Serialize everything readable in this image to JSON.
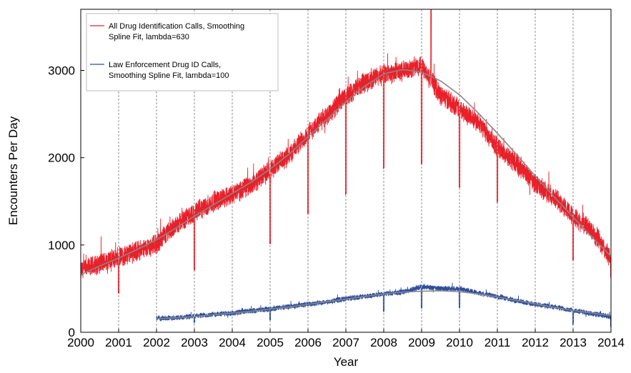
{
  "chart_data": {
    "type": "line",
    "title": "",
    "xlabel": "Year",
    "ylabel": "Encounters Per Day",
    "xlim": [
      2000,
      2014
    ],
    "ylim": [
      0,
      3700
    ],
    "x_ticks": [
      "2000",
      "2001",
      "2002",
      "2003",
      "2004",
      "2005",
      "2006",
      "2007",
      "2008",
      "2009",
      "2010",
      "2011",
      "2012",
      "2013",
      "2014"
    ],
    "y_ticks": [
      "0",
      "1000",
      "2000",
      "3000"
    ],
    "x_tick_values": [
      2000,
      2001,
      2002,
      2003,
      2004,
      2005,
      2006,
      2007,
      2008,
      2009,
      2010,
      2011,
      2012,
      2013,
      2014
    ],
    "y_tick_values": [
      0,
      1000,
      2000,
      3000
    ],
    "vertical_gridlines": "dashed at each year",
    "legend_position": "top-left",
    "series": [
      {
        "name": "All Drug Identification Calls, Smoothing Spline Fit, lambda=630",
        "legend_lines": [
          "All Drug Identification Calls, Smoothing",
          "Spline Fit, lambda=630"
        ],
        "color": "#e8202a",
        "noise_amplitude": 130,
        "x": [
          2000.0,
          2000.5,
          2001.0,
          2001.5,
          2002.0,
          2002.5,
          2003.0,
          2003.5,
          2004.0,
          2004.5,
          2005.0,
          2005.5,
          2006.0,
          2006.5,
          2007.0,
          2007.5,
          2008.0,
          2008.5,
          2009.0,
          2009.5,
          2010.0,
          2010.5,
          2011.0,
          2011.5,
          2012.0,
          2012.5,
          2013.0,
          2013.5,
          2014.0
        ],
        "y": [
          700,
          790,
          860,
          930,
          1010,
          1230,
          1370,
          1490,
          1580,
          1690,
          1860,
          2030,
          2280,
          2490,
          2700,
          2860,
          2960,
          2990,
          3070,
          2720,
          2560,
          2400,
          2120,
          1930,
          1700,
          1550,
          1330,
          1170,
          830
        ],
        "dips": [
          {
            "x": 2001.0,
            "y": 440
          },
          {
            "x": 2003.0,
            "y": 700
          },
          {
            "x": 2005.0,
            "y": 1010
          },
          {
            "x": 2006.0,
            "y": 1350
          },
          {
            "x": 2007.0,
            "y": 1570
          },
          {
            "x": 2008.0,
            "y": 1870
          },
          {
            "x": 2009.0,
            "y": 1920
          },
          {
            "x": 2010.0,
            "y": 1650
          },
          {
            "x": 2011.0,
            "y": 1480
          },
          {
            "x": 2013.0,
            "y": 820
          },
          {
            "x": 2014.0,
            "y": 620
          }
        ],
        "peak": {
          "x": 2009.25,
          "y": 3700
        }
      },
      {
        "name": "Law Enforcement Drug ID Calls, Smoothing Spline Fit, lambda=100",
        "legend_lines": [
          "Law Enforcement Drug ID Calls,",
          "Smoothing Spline Fit, lambda=100"
        ],
        "color": "#2e4d9c",
        "noise_amplitude": 35,
        "x": [
          2002.0,
          2002.5,
          2003.0,
          2003.5,
          2004.0,
          2004.5,
          2005.0,
          2005.5,
          2006.0,
          2006.5,
          2007.0,
          2007.5,
          2008.0,
          2008.5,
          2009.0,
          2009.5,
          2010.0,
          2010.5,
          2011.0,
          2011.5,
          2012.0,
          2012.5,
          2013.0,
          2013.5,
          2014.0
        ],
        "y": [
          160,
          165,
          185,
          205,
          220,
          245,
          265,
          295,
          320,
          350,
          385,
          410,
          440,
          460,
          520,
          500,
          500,
          450,
          410,
          360,
          320,
          290,
          250,
          215,
          175
        ],
        "dips": [
          {
            "x": 2003.0,
            "y": 100
          },
          {
            "x": 2005.0,
            "y": 130
          },
          {
            "x": 2008.0,
            "y": 230
          },
          {
            "x": 2009.0,
            "y": 270
          },
          {
            "x": 2010.0,
            "y": 260
          },
          {
            "x": 2013.0,
            "y": 80
          },
          {
            "x": 2014.0,
            "y": 60
          }
        ]
      }
    ],
    "smooth_fits": [
      {
        "of": "All Drug Identification Calls",
        "color": "#888888",
        "x": [
          2000.0,
          2000.5,
          2001.0,
          2001.5,
          2002.0,
          2002.5,
          2003.0,
          2003.5,
          2004.0,
          2004.5,
          2005.0,
          2005.5,
          2006.0,
          2006.5,
          2007.0,
          2007.5,
          2008.0,
          2008.5,
          2009.0,
          2009.5,
          2010.0,
          2010.5,
          2011.0,
          2011.5,
          2012.0,
          2012.5,
          2013.0,
          2013.5,
          2014.0
        ],
        "y": [
          660,
          760,
          850,
          950,
          1060,
          1190,
          1330,
          1460,
          1590,
          1720,
          1870,
          2040,
          2240,
          2440,
          2640,
          2820,
          2960,
          3010,
          2980,
          2880,
          2720,
          2510,
          2280,
          2040,
          1790,
          1550,
          1320,
          1090,
          870
        ]
      },
      {
        "of": "Law Enforcement Drug ID Calls",
        "color": "#888888",
        "x": [
          2002.0,
          2002.5,
          2003.0,
          2003.5,
          2004.0,
          2004.5,
          2005.0,
          2005.5,
          2006.0,
          2006.5,
          2007.0,
          2007.5,
          2008.0,
          2008.5,
          2009.0,
          2009.5,
          2010.0,
          2010.5,
          2011.0,
          2011.5,
          2012.0,
          2012.5,
          2013.0,
          2013.5,
          2014.0
        ],
        "y": [
          155,
          165,
          180,
          200,
          220,
          240,
          265,
          290,
          320,
          350,
          380,
          410,
          440,
          460,
          470,
          475,
          465,
          440,
          405,
          365,
          325,
          285,
          250,
          220,
          190
        ]
      }
    ]
  }
}
